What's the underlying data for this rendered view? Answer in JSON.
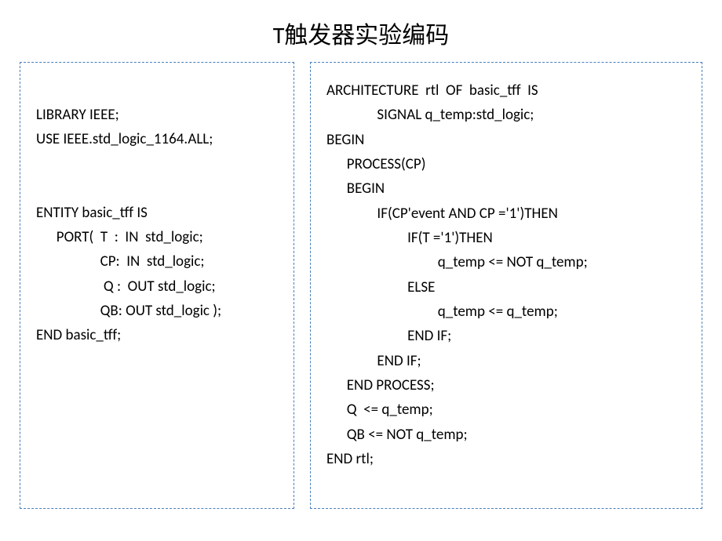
{
  "title": "T触发器实验编码",
  "colors": {
    "border": "#4a7ebb",
    "text": "#000000",
    "background": "#ffffff"
  },
  "typography": {
    "title_fontsize": 30,
    "code_fontsize": 19,
    "font_family": "Calibri"
  },
  "left_panel": {
    "lines": [
      "",
      "LIBRARY IEEE;",
      "USE IEEE.std_logic_1164.ALL;",
      "",
      "",
      "ENTITY basic_tff IS",
      "      PORT(  T  :  IN  std_logic;",
      "                   CP:  IN  std_logic;",
      "                    Q :  OUT std_logic;",
      "                   QB: OUT std_logic );",
      "END basic_tff;"
    ]
  },
  "right_panel": {
    "lines": [
      "ARCHITECTURE  rtl  OF  basic_tff  IS",
      "               SIGNAL q_temp:std_logic;",
      "BEGIN",
      "      PROCESS(CP)",
      "      BEGIN",
      "               IF(CP'event AND CP ='1')THEN",
      "                        IF(T ='1')THEN",
      "                                 q_temp <= NOT q_temp;",
      "                        ELSE",
      "                                 q_temp <= q_temp;",
      "                        END IF;",
      "               END IF;",
      "      END PROCESS;",
      "      Q  <= q_temp;",
      "      QB <= NOT q_temp;",
      "END rtl;"
    ]
  }
}
